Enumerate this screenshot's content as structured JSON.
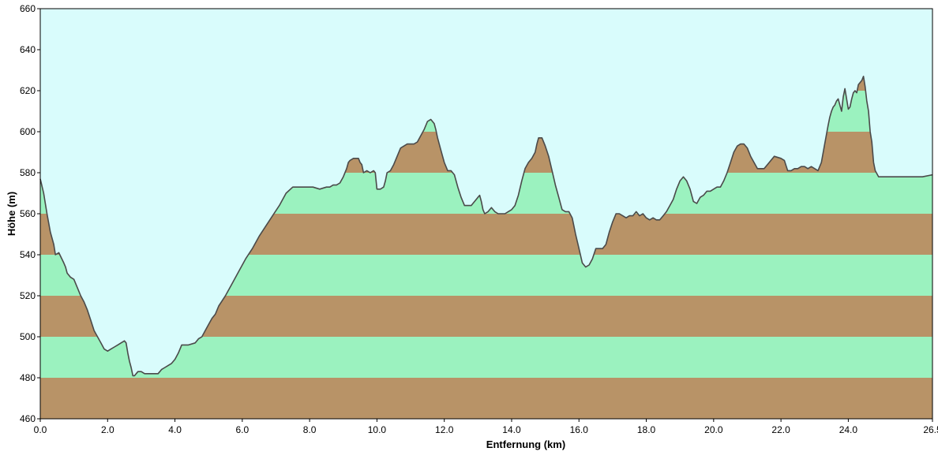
{
  "colors": {
    "sky": "#d9fcfc",
    "band_brown": "#b89367",
    "band_green": "#9bf2bf",
    "profile_line": "#4a4a4a",
    "axis": "#000000"
  },
  "chart_data": {
    "type": "area",
    "title": "",
    "xlabel": "Entfernung   (km)",
    "ylabel": "Höhe  (m)",
    "xlim": [
      0,
      26.5
    ],
    "ylim": [
      460,
      660
    ],
    "x_ticks": [
      0,
      2,
      4,
      6,
      8,
      10,
      12,
      14,
      16,
      18,
      20,
      22,
      24,
      26.5
    ],
    "x_tick_labels": [
      "0.0",
      "2.0",
      "4.0",
      "6.0",
      "8.0",
      "10.0",
      "12.0",
      "14.0",
      "16.0",
      "18.0",
      "20.0",
      "22.0",
      "24.0",
      "26.5"
    ],
    "y_ticks": [
      460,
      480,
      500,
      520,
      540,
      560,
      580,
      600,
      620,
      640,
      660
    ],
    "y_tick_labels": [
      "460",
      "480",
      "500",
      "520",
      "540",
      "560",
      "580",
      "600",
      "620",
      "640",
      "660"
    ],
    "band_step": 20,
    "grid": false,
    "legend": "none",
    "series": [
      {
        "x": [
          0.0,
          0.1,
          0.2,
          0.3,
          0.4,
          0.45,
          0.55,
          0.7,
          0.75,
          0.8,
          0.9,
          1.0,
          1.1,
          1.2,
          1.3,
          1.4,
          1.5,
          1.6,
          1.7,
          1.8,
          1.9,
          2.0,
          2.1,
          2.2,
          2.3,
          2.4,
          2.5,
          2.55,
          2.6,
          2.65,
          2.7,
          2.75,
          2.8,
          2.85,
          2.9,
          3.0,
          3.1,
          3.3,
          3.5,
          3.55,
          3.6,
          3.7,
          3.8,
          3.9,
          4.0,
          4.1,
          4.15,
          4.2,
          4.4,
          4.6,
          4.65,
          4.7,
          4.8,
          4.9,
          5.0,
          5.1,
          5.2,
          5.3,
          5.5,
          5.7,
          5.9,
          6.1,
          6.3,
          6.5,
          6.7,
          6.9,
          7.1,
          7.3,
          7.5,
          7.7,
          7.9,
          8.1,
          8.3,
          8.5,
          8.6,
          8.7,
          8.8,
          8.9,
          9.0,
          9.1,
          9.15,
          9.2,
          9.3,
          9.4,
          9.45,
          9.5,
          9.55,
          9.6,
          9.7,
          9.8,
          9.9,
          9.95,
          10.0,
          10.1,
          10.2,
          10.25,
          10.3,
          10.4,
          10.5,
          10.6,
          10.7,
          10.8,
          10.9,
          11.0,
          11.1,
          11.2,
          11.3,
          11.4,
          11.5,
          11.6,
          11.7,
          11.75,
          11.8,
          11.9,
          12.0,
          12.1,
          12.2,
          12.3,
          12.4,
          12.5,
          12.6,
          12.7,
          12.8,
          12.9,
          13.0,
          13.05,
          13.1,
          13.15,
          13.2,
          13.3,
          13.4,
          13.5,
          13.6,
          13.7,
          13.8,
          13.9,
          14.0,
          14.1,
          14.2,
          14.3,
          14.4,
          14.5,
          14.6,
          14.7,
          14.75,
          14.8,
          14.9,
          15.0,
          15.1,
          15.2,
          15.3,
          15.4,
          15.5,
          15.6,
          15.7,
          15.8,
          15.9,
          16.0,
          16.1,
          16.2,
          16.3,
          16.4,
          16.5,
          16.6,
          16.7,
          16.8,
          16.9,
          17.0,
          17.1,
          17.2,
          17.3,
          17.4,
          17.5,
          17.6,
          17.7,
          17.8,
          17.9,
          18.0,
          18.1,
          18.2,
          18.3,
          18.4,
          18.5,
          18.6,
          18.7,
          18.8,
          18.9,
          19.0,
          19.1,
          19.2,
          19.3,
          19.4,
          19.5,
          19.6,
          19.7,
          19.8,
          19.9,
          20.0,
          20.1,
          20.2,
          20.3,
          20.4,
          20.5,
          20.6,
          20.7,
          20.8,
          20.9,
          21.0,
          21.1,
          21.2,
          21.3,
          21.4,
          21.5,
          21.6,
          21.8,
          22.0,
          22.1,
          22.2,
          22.3,
          22.4,
          22.5,
          22.6,
          22.7,
          22.8,
          22.9,
          23.0,
          23.1,
          23.2,
          23.3,
          23.4,
          23.45,
          23.5,
          23.55,
          23.6,
          23.65,
          23.7,
          23.75,
          23.8,
          23.85,
          23.9,
          24.0,
          24.05,
          24.1,
          24.15,
          24.2,
          24.25,
          24.3,
          24.4,
          24.45,
          24.5,
          24.55,
          24.6,
          24.65,
          24.7,
          24.75,
          24.8,
          24.9,
          25.0,
          25.2,
          25.4,
          25.6,
          25.8,
          26.0,
          26.2,
          26.5
        ],
        "y": [
          577,
          570,
          560,
          551,
          545,
          540,
          541,
          536,
          534,
          531,
          529,
          528,
          524,
          520,
          517,
          513,
          508,
          503,
          500,
          497,
          494,
          493,
          494,
          495,
          496,
          497,
          498,
          497,
          492,
          488,
          485,
          481,
          481,
          482,
          483,
          483,
          482,
          482,
          482,
          483,
          484,
          485,
          486,
          487,
          489,
          492,
          494,
          496,
          496,
          497,
          498,
          499,
          500,
          503,
          506,
          509,
          511,
          515,
          520,
          526,
          532,
          538,
          543,
          549,
          554,
          559,
          564,
          570,
          573,
          573,
          573,
          573,
          572,
          573,
          573,
          574,
          574,
          575,
          578,
          582,
          585,
          586,
          587,
          587,
          587,
          585,
          584,
          580,
          581,
          580,
          581,
          580,
          572,
          572,
          573,
          576,
          580,
          581,
          584,
          588,
          592,
          593,
          594,
          594,
          594,
          595,
          598,
          601,
          605,
          606,
          604,
          601,
          597,
          591,
          585,
          581,
          581,
          579,
          573,
          568,
          564,
          564,
          564,
          566,
          568,
          569,
          566,
          562,
          560,
          561,
          563,
          561,
          560,
          560,
          560,
          561,
          562,
          564,
          569,
          576,
          582,
          585,
          587,
          590,
          594,
          597,
          597,
          593,
          588,
          581,
          574,
          568,
          562,
          561,
          561,
          558,
          550,
          543,
          536,
          534,
          535,
          538,
          543,
          543,
          543,
          545,
          551,
          556,
          560,
          560,
          559,
          558,
          559,
          559,
          561,
          559,
          560,
          558,
          557,
          558,
          557,
          557,
          559,
          561,
          564,
          567,
          572,
          576,
          578,
          576,
          572,
          566,
          565,
          568,
          569,
          571,
          571,
          572,
          573,
          573,
          576,
          580,
          585,
          590,
          593,
          594,
          594,
          592,
          588,
          585,
          582,
          582,
          582,
          584,
          588,
          587,
          586,
          581,
          581,
          582,
          582,
          583,
          583,
          582,
          583,
          582,
          581,
          585,
          594,
          603,
          607,
          610,
          612,
          613,
          615,
          616,
          613,
          610,
          617,
          621,
          611,
          612,
          616,
          619,
          620,
          619,
          623,
          625,
          627,
          622,
          615,
          610,
          600,
          595,
          585,
          581,
          578,
          578,
          578,
          578,
          578,
          578,
          578,
          578,
          579
        ]
      }
    ]
  }
}
